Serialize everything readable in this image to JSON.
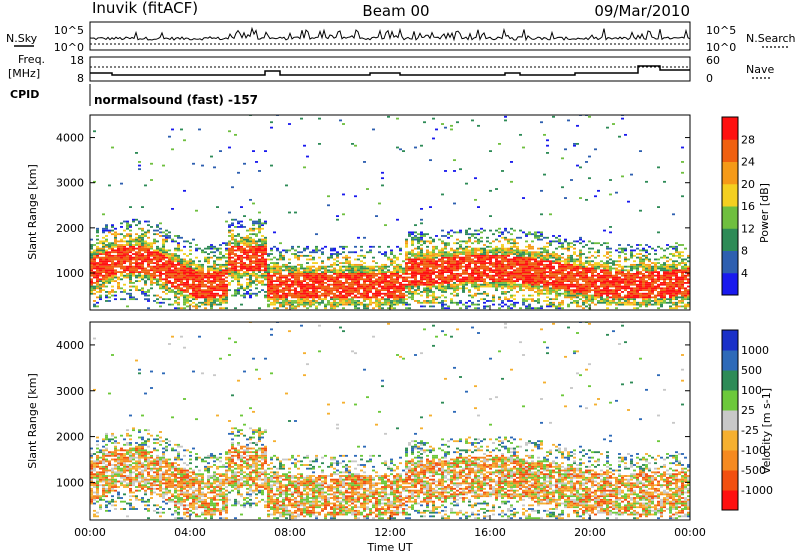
{
  "header": {
    "station": "Inuvik (fitACF)",
    "beam": "Beam 00",
    "date": "09/Mar/2010"
  },
  "panels": {
    "nsky_label": "N.Sky",
    "nsearch_label": "N.Search",
    "freq_label": "Freq.",
    "freq_unit": "[MHz]",
    "nave_label": "Nave",
    "cpid_label": "CPID",
    "cpid_text": "normalsound (fast) -157",
    "noise_ticks_left": [
      "10^5",
      "10^0"
    ],
    "noise_ticks_right": [
      "10^5",
      "10^0"
    ],
    "freq_ticks": [
      "18",
      "8"
    ],
    "nave_ticks": [
      "60",
      "0"
    ]
  },
  "colors": {
    "power": [
      "#1a1aee",
      "#2e5fb0",
      "#2e8b57",
      "#6fbf3f",
      "#f4d020",
      "#f59a18",
      "#f06010",
      "#ff1010"
    ],
    "velocity": [
      "#ff1010",
      "#f25010",
      "#f58a20",
      "#f5b030",
      "#c8c8c8",
      "#6cc83a",
      "#2e8b57",
      "#2e6ab8",
      "#1a30c8"
    ]
  },
  "chart_data": [
    {
      "type": "heatmap",
      "name": "power",
      "xlabel": "",
      "ylabel": "Slant Range [km]",
      "x_ticks": [
        "00:00",
        "04:00",
        "08:00",
        "12:00",
        "16:00",
        "20:00",
        "00:00"
      ],
      "y_ticks": [
        1000,
        2000,
        3000,
        4000
      ],
      "ylim": [
        180,
        4500
      ],
      "colorbar": {
        "label": "Power [dB]",
        "ticks": [
          4,
          8,
          12,
          16,
          20,
          24,
          28
        ],
        "range": [
          0,
          30
        ]
      },
      "echo_bands": [
        {
          "t_start": 0.0,
          "t_end": 5.5,
          "range_center": 1000,
          "level": "high"
        },
        {
          "t_start": 7.0,
          "t_end": 12.5,
          "range_center": 700,
          "level": "high"
        },
        {
          "t_start": 13.5,
          "t_end": 24.0,
          "range_center": 900,
          "level": "high"
        }
      ]
    },
    {
      "type": "heatmap",
      "name": "velocity",
      "xlabel": "Time UT",
      "ylabel": "Slant Range [km]",
      "x_ticks": [
        "00:00",
        "04:00",
        "08:00",
        "12:00",
        "16:00",
        "20:00",
        "00:00"
      ],
      "y_ticks": [
        1000,
        2000,
        3000,
        4000
      ],
      "ylim": [
        180,
        4500
      ],
      "colorbar": {
        "label": "Velocity [m s-1]",
        "ticks": [
          1000,
          500,
          100,
          25,
          -25,
          -100,
          -500,
          -1000
        ]
      }
    }
  ]
}
